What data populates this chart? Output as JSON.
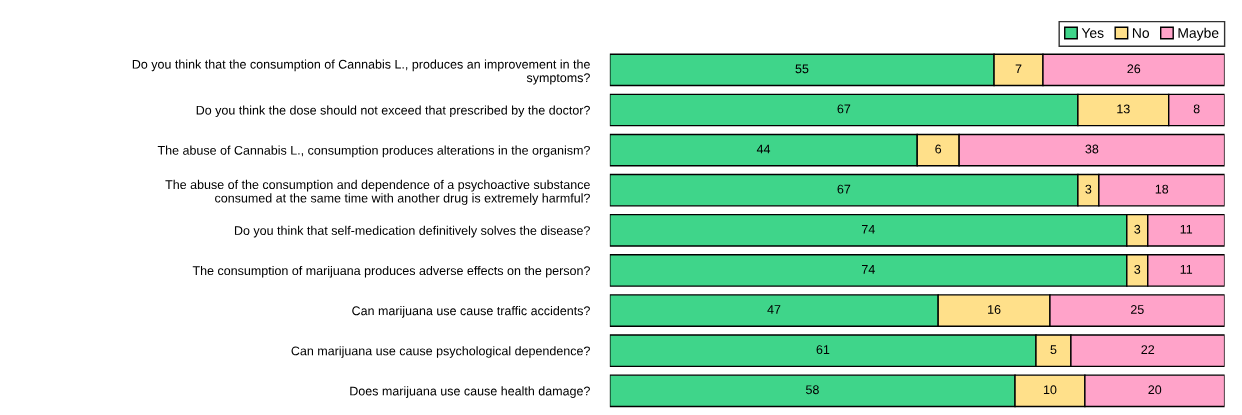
{
  "chart_data": {
    "type": "bar",
    "orientation": "horizontal",
    "stacked": true,
    "data_labels": true,
    "legend": "top right",
    "grid": false,
    "tick_labels": "y",
    "categories": [
      "Do you think that the consumption of Cannabis L., produces an improvement in the\nsymptoms?",
      "Do you think the dose should not exceed that prescribed by the doctor?",
      "The abuse of Cannabis L., consumption produces alterations in the organism?",
      "The abuse of the consumption and dependence of a psychoactive substance\nconsumed at the same time with another drug is extremely harmful?",
      "Do you think that self-medication definitively solves the disease?",
      "The consumption of marijuana produces adverse effects on the person?",
      "Can marijuana use cause traffic accidents?",
      "Can marijuana use cause psychological dependence?",
      "Does marijuana use cause health damage?"
    ],
    "series": [
      {
        "name": "Yes",
        "color": "#3fd58a",
        "values": [
          55,
          67,
          44,
          67,
          74,
          74,
          47,
          61,
          58
        ]
      },
      {
        "name": "No",
        "color": "#ffe08a",
        "values": [
          7,
          13,
          6,
          3,
          3,
          3,
          16,
          5,
          10
        ]
      },
      {
        "name": "Maybe",
        "color": "#ffa3c9",
        "values": [
          26,
          8,
          38,
          18,
          11,
          11,
          25,
          22,
          20
        ]
      }
    ]
  }
}
